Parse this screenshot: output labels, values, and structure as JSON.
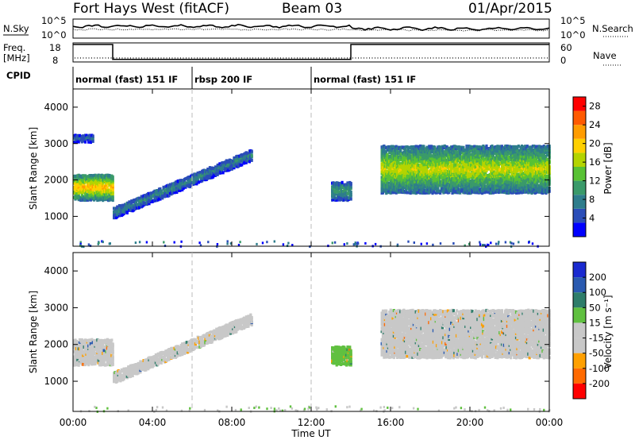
{
  "header": {
    "station": "Fort Hays West (fitACF)",
    "beam": "Beam 03",
    "date": "01/Apr/2015"
  },
  "strip": {
    "nsky_label": "N.Sky",
    "nsky_ticks": [
      "10^5",
      "10^0"
    ],
    "nsearch_label": "N.Search",
    "nsearch_ticks": [
      "10^5",
      "10^0"
    ],
    "freq_label": "Freq.",
    "freq_unit": "[MHz]",
    "freq_ticks": [
      "18",
      "8"
    ],
    "nave_label": "Nave",
    "nave_ticks": [
      "60",
      "0"
    ],
    "cpid_label": "CPID",
    "cpid_segments": [
      {
        "label": "normal (fast) 151 IF",
        "start_h": 0,
        "end_h": 6
      },
      {
        "label": "rbsp 200 IF",
        "start_h": 6,
        "end_h": 12
      },
      {
        "label": "normal (fast) 151 IF",
        "start_h": 12,
        "end_h": 24
      }
    ],
    "freq_profile": [
      {
        "start_h": 0,
        "end_h": 2,
        "mhz": 18
      },
      {
        "start_h": 2,
        "end_h": 14,
        "mhz": 9.5
      },
      {
        "start_h": 14,
        "end_h": 24,
        "mhz": 18
      }
    ]
  },
  "colors": {
    "power": [
      "#0000ff",
      "#2a4db8",
      "#2e7d8c",
      "#3a9a6a",
      "#58c234",
      "#b4d400",
      "#ffd000",
      "#ff9c00",
      "#ff5a00",
      "#ff0000"
    ],
    "velocity": [
      "#ff0000",
      "#ff6a00",
      "#ffa000",
      "#c8c8c8",
      "#c8c8c8",
      "#60c040",
      "#2e7d6a",
      "#2a5ab0",
      "#1a2ad0"
    ]
  },
  "chart_data": [
    {
      "type": "heatmap",
      "name": "power",
      "ylabel": "Slant Range [km]",
      "xlabel": "Time UT",
      "xlim": [
        0,
        24
      ],
      "ylim": [
        180,
        4500
      ],
      "x_ticks": [
        "00:00",
        "04:00",
        "08:00",
        "12:00",
        "16:00",
        "20:00",
        "00:00"
      ],
      "y_ticks": [
        1000,
        2000,
        3000,
        4000
      ],
      "colorbar": {
        "label": "Power [dB]",
        "range": [
          0,
          30
        ],
        "ticks": [
          4,
          8,
          12,
          16,
          20,
          24,
          28
        ]
      },
      "echo_bands": [
        {
          "start_h": 0.0,
          "end_h": 2.0,
          "range_km": [
            1500,
            2200
          ],
          "power_db": 20
        },
        {
          "start_h": 2.0,
          "end_h": 9.0,
          "range_km_start": [
            1000,
            1300
          ],
          "range_km_end": [
            2600,
            2900
          ],
          "power_db": 8
        },
        {
          "start_h": 13.0,
          "end_h": 14.0,
          "range_km": [
            1500,
            2000
          ],
          "power_db": 10
        },
        {
          "start_h": 15.5,
          "end_h": 24.0,
          "range_km": [
            1700,
            3000
          ],
          "power_db": 16
        },
        {
          "start_h": 0.0,
          "end_h": 1.0,
          "range_km": [
            3100,
            3300
          ],
          "power_db": 6
        }
      ],
      "reference_lines_h": [
        6,
        12
      ]
    },
    {
      "type": "heatmap",
      "name": "velocity",
      "ylabel": "Slant Range [km]",
      "xlabel": "Time UT",
      "xlim": [
        0,
        24
      ],
      "ylim": [
        180,
        4500
      ],
      "x_ticks": [
        "00:00",
        "04:00",
        "08:00",
        "12:00",
        "16:00",
        "20:00",
        "00:00"
      ],
      "y_ticks": [
        1000,
        2000,
        3000,
        4000
      ],
      "colorbar": {
        "label": "Velocity [m s⁻¹]",
        "ticks": [
          "200",
          "100",
          "50",
          "15",
          "-15",
          "-50",
          "-100",
          "-200"
        ]
      },
      "echo_bands": [
        {
          "start_h": 0.0,
          "end_h": 2.0,
          "range_km": [
            1500,
            2200
          ],
          "velocity": 0
        },
        {
          "start_h": 2.0,
          "end_h": 9.0,
          "range_km_start": [
            1000,
            1300
          ],
          "range_km_end": [
            2600,
            2900
          ],
          "velocity": 0
        },
        {
          "start_h": 13.0,
          "end_h": 14.0,
          "range_km": [
            1500,
            2000
          ],
          "velocity": 30
        },
        {
          "start_h": 15.5,
          "end_h": 24.0,
          "range_km": [
            1700,
            3000
          ],
          "velocity": 0
        }
      ],
      "reference_lines_h": [
        6,
        12
      ]
    }
  ]
}
